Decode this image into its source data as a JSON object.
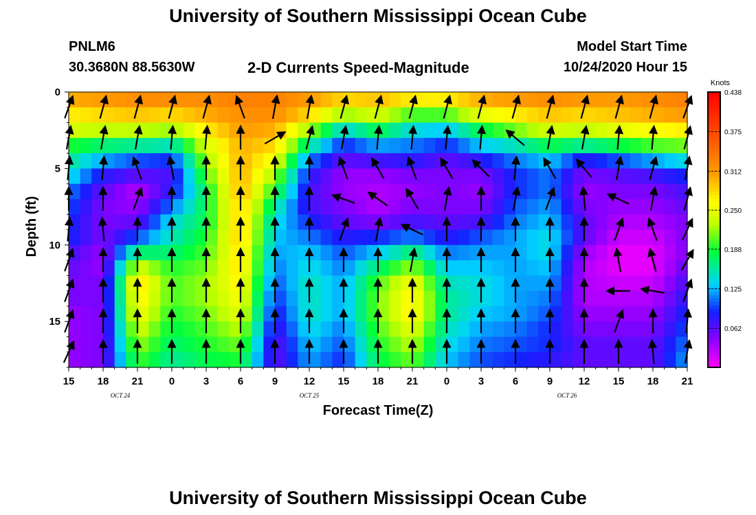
{
  "title_top": "University of Southern Mississippi Ocean Cube",
  "title_bottom": "University of Southern Mississippi Ocean Cube",
  "station": {
    "id": "PNLM6",
    "coords": "30.3680N 88.5630W"
  },
  "plot_title": "2-D Currents Speed-Magnitude",
  "model": {
    "label": "Model Start Time",
    "value": "10/24/2020 Hour 15"
  },
  "chart_data": {
    "type": "heatmap",
    "title": "2-D Currents Speed-Magnitude",
    "xlabel": "Forecast Time(Z)",
    "ylabel": "Depth (ft)",
    "x_hours": [
      0,
      54
    ],
    "x_tick_labels": [
      "15",
      "18",
      "21",
      "0",
      "3",
      "6",
      "9",
      "12",
      "15",
      "18",
      "21",
      "0",
      "3",
      "6",
      "9",
      "12",
      "15",
      "18",
      "21"
    ],
    "date_labels": [
      {
        "hour": 4.5,
        "text": "OCT 24"
      },
      {
        "hour": 21,
        "text": "OCT 25"
      },
      {
        "hour": 43.5,
        "text": "OCT 26"
      }
    ],
    "ylim": [
      0,
      18
    ],
    "y_tick_labels": [
      "0",
      "5",
      "10",
      "15"
    ],
    "y_tick_values": [
      0,
      5,
      10,
      15
    ],
    "colorbar": {
      "unit": "Knots",
      "range": [
        0,
        0.438
      ],
      "tick_labels": [
        "0.438",
        "0.375",
        "0.312",
        "0.250",
        "0.188",
        "0.125",
        "0.062"
      ],
      "tick_values": [
        0.438,
        0.375,
        0.312,
        0.25,
        0.188,
        0.125,
        0.062
      ]
    },
    "depth_levels": [
      0.5,
      1.5,
      2.5,
      3.5,
      4.5,
      5.5,
      6.5,
      7.5,
      8.5,
      9.5,
      10.5,
      11.5,
      12.5,
      13.5,
      14.5,
      15.5,
      16.5,
      17.5
    ],
    "speed_profiles": [
      {
        "hour": 0,
        "values": [
          0.3,
          0.27,
          0.24,
          0.19,
          0.16,
          0.14,
          0.11,
          0.1,
          0.09,
          0.09,
          0.07,
          0.06,
          0.05,
          0.05,
          0.04,
          0.04,
          0.04,
          0.04
        ]
      },
      {
        "hour": 3,
        "values": [
          0.31,
          0.28,
          0.23,
          0.17,
          0.12,
          0.08,
          0.06,
          0.05,
          0.05,
          0.05,
          0.04,
          0.04,
          0.05,
          0.05,
          0.05,
          0.05,
          0.05,
          0.05
        ]
      },
      {
        "hour": 6,
        "values": [
          0.32,
          0.29,
          0.23,
          0.16,
          0.1,
          0.06,
          0.03,
          0.04,
          0.06,
          0.1,
          0.17,
          0.24,
          0.28,
          0.27,
          0.26,
          0.24,
          0.22,
          0.2
        ]
      },
      {
        "hour": 9,
        "values": [
          0.32,
          0.28,
          0.22,
          0.15,
          0.09,
          0.07,
          0.08,
          0.11,
          0.14,
          0.15,
          0.17,
          0.19,
          0.2,
          0.2,
          0.19,
          0.18,
          0.17,
          0.16
        ]
      },
      {
        "hour": 12,
        "values": [
          0.32,
          0.3,
          0.27,
          0.24,
          0.22,
          0.2,
          0.18,
          0.18,
          0.18,
          0.19,
          0.2,
          0.21,
          0.22,
          0.22,
          0.21,
          0.2,
          0.19,
          0.18
        ]
      },
      {
        "hour": 15,
        "values": [
          0.33,
          0.32,
          0.31,
          0.3,
          0.3,
          0.3,
          0.3,
          0.29,
          0.29,
          0.29,
          0.28,
          0.28,
          0.27,
          0.26,
          0.25,
          0.23,
          0.21,
          0.19
        ]
      },
      {
        "hour": 18,
        "values": [
          0.33,
          0.32,
          0.3,
          0.28,
          0.25,
          0.22,
          0.19,
          0.16,
          0.14,
          0.13,
          0.12,
          0.11,
          0.1,
          0.09,
          0.08,
          0.07,
          0.06,
          0.06
        ]
      },
      {
        "hour": 21,
        "values": [
          0.31,
          0.28,
          0.22,
          0.16,
          0.11,
          0.08,
          0.07,
          0.07,
          0.09,
          0.11,
          0.13,
          0.14,
          0.15,
          0.15,
          0.15,
          0.14,
          0.13,
          0.12
        ]
      },
      {
        "hour": 24,
        "values": [
          0.28,
          0.22,
          0.14,
          0.09,
          0.06,
          0.04,
          0.04,
          0.05,
          0.06,
          0.08,
          0.1,
          0.11,
          0.12,
          0.12,
          0.12,
          0.11,
          0.1,
          0.09
        ]
      },
      {
        "hour": 27,
        "values": [
          0.29,
          0.24,
          0.18,
          0.12,
          0.07,
          0.04,
          0.03,
          0.03,
          0.05,
          0.09,
          0.13,
          0.17,
          0.2,
          0.21,
          0.21,
          0.2,
          0.19,
          0.18
        ]
      },
      {
        "hour": 30,
        "values": [
          0.27,
          0.2,
          0.14,
          0.11,
          0.08,
          0.05,
          0.04,
          0.05,
          0.07,
          0.11,
          0.17,
          0.22,
          0.26,
          0.27,
          0.27,
          0.25,
          0.23,
          0.21
        ]
      },
      {
        "hour": 33,
        "values": [
          0.27,
          0.2,
          0.13,
          0.09,
          0.06,
          0.05,
          0.05,
          0.05,
          0.06,
          0.08,
          0.11,
          0.13,
          0.15,
          0.16,
          0.16,
          0.15,
          0.14,
          0.13
        ]
      },
      {
        "hour": 36,
        "values": [
          0.3,
          0.25,
          0.18,
          0.13,
          0.08,
          0.05,
          0.04,
          0.05,
          0.07,
          0.1,
          0.12,
          0.13,
          0.14,
          0.14,
          0.13,
          0.12,
          0.11,
          0.1
        ]
      },
      {
        "hour": 39,
        "values": [
          0.31,
          0.27,
          0.21,
          0.15,
          0.11,
          0.09,
          0.09,
          0.1,
          0.11,
          0.12,
          0.12,
          0.12,
          0.12,
          0.12,
          0.12,
          0.11,
          0.1,
          0.09
        ]
      },
      {
        "hour": 42,
        "values": [
          0.32,
          0.29,
          0.24,
          0.18,
          0.13,
          0.11,
          0.11,
          0.12,
          0.13,
          0.14,
          0.14,
          0.13,
          0.12,
          0.11,
          0.1,
          0.09,
          0.09,
          0.08
        ]
      },
      {
        "hour": 45,
        "values": [
          0.31,
          0.28,
          0.23,
          0.16,
          0.08,
          0.05,
          0.04,
          0.05,
          0.06,
          0.06,
          0.04,
          0.03,
          0.03,
          0.03,
          0.04,
          0.05,
          0.06,
          0.06
        ]
      },
      {
        "hour": 48,
        "values": [
          0.31,
          0.29,
          0.25,
          0.18,
          0.1,
          0.06,
          0.05,
          0.04,
          0.03,
          0.02,
          0.01,
          0.01,
          0.02,
          0.03,
          0.04,
          0.05,
          0.06,
          0.06
        ]
      },
      {
        "hour": 51,
        "values": [
          0.32,
          0.3,
          0.26,
          0.2,
          0.12,
          0.07,
          0.05,
          0.04,
          0.03,
          0.02,
          0.01,
          0.01,
          0.02,
          0.03,
          0.04,
          0.05,
          0.06,
          0.06
        ]
      },
      {
        "hour": 54,
        "values": [
          0.33,
          0.31,
          0.27,
          0.21,
          0.14,
          0.09,
          0.07,
          0.06,
          0.05,
          0.05,
          0.05,
          0.06,
          0.07,
          0.08,
          0.09,
          0.1,
          0.11,
          0.12
        ]
      }
    ],
    "arrow_depths": [
      1,
      3,
      5,
      7,
      9,
      11,
      13,
      15,
      17
    ],
    "arrows": [
      {
        "hour": 0,
        "dirs_deg": [
          200,
          190,
          185,
          180,
          185,
          200,
          200,
          200,
          205
        ]
      },
      {
        "hour": 3,
        "dirs_deg": [
          195,
          190,
          185,
          180,
          175,
          180,
          180,
          180,
          180
        ]
      },
      {
        "hour": 6,
        "dirs_deg": [
          195,
          190,
          160,
          200,
          180,
          180,
          180,
          180,
          180
        ]
      },
      {
        "hour": 9,
        "dirs_deg": [
          195,
          185,
          170,
          180,
          180,
          180,
          180,
          180,
          180
        ]
      },
      {
        "hour": 12,
        "dirs_deg": [
          195,
          185,
          180,
          180,
          180,
          180,
          180,
          180,
          180
        ]
      },
      {
        "hour": 15,
        "dirs_deg": [
          160,
          180,
          180,
          180,
          180,
          180,
          180,
          180,
          180
        ]
      },
      {
        "hour": 18,
        "dirs_deg": [
          190,
          240,
          180,
          180,
          180,
          180,
          180,
          180,
          180
        ]
      },
      {
        "hour": 21,
        "dirs_deg": [
          190,
          195,
          180,
          180,
          180,
          180,
          180,
          180,
          180
        ]
      },
      {
        "hour": 24,
        "dirs_deg": [
          195,
          190,
          160,
          110,
          200,
          180,
          180,
          180,
          180
        ]
      },
      {
        "hour": 27,
        "dirs_deg": [
          195,
          185,
          150,
          125,
          190,
          180,
          180,
          180,
          180
        ]
      },
      {
        "hour": 30,
        "dirs_deg": [
          195,
          185,
          160,
          150,
          115,
          190,
          180,
          180,
          180
        ]
      },
      {
        "hour": 33,
        "dirs_deg": [
          195,
          185,
          150,
          190,
          180,
          180,
          180,
          180,
          180
        ]
      },
      {
        "hour": 36,
        "dirs_deg": [
          195,
          185,
          135,
          180,
          180,
          180,
          180,
          180,
          180
        ]
      },
      {
        "hour": 39,
        "dirs_deg": [
          195,
          130,
          185,
          190,
          180,
          180,
          180,
          180,
          180
        ]
      },
      {
        "hour": 42,
        "dirs_deg": [
          195,
          190,
          150,
          200,
          180,
          180,
          180,
          180,
          180
        ]
      },
      {
        "hour": 45,
        "dirs_deg": [
          195,
          190,
          140,
          175,
          180,
          180,
          180,
          180,
          180
        ]
      },
      {
        "hour": 48,
        "dirs_deg": [
          195,
          185,
          190,
          115,
          200,
          170,
          90,
          200,
          180
        ]
      },
      {
        "hour": 51,
        "dirs_deg": [
          195,
          185,
          195,
          190,
          160,
          165,
          100,
          180,
          175
        ]
      },
      {
        "hour": 54,
        "dirs_deg": [
          200,
          195,
          190,
          195,
          205,
          210,
          200,
          185,
          190
        ]
      }
    ]
  }
}
